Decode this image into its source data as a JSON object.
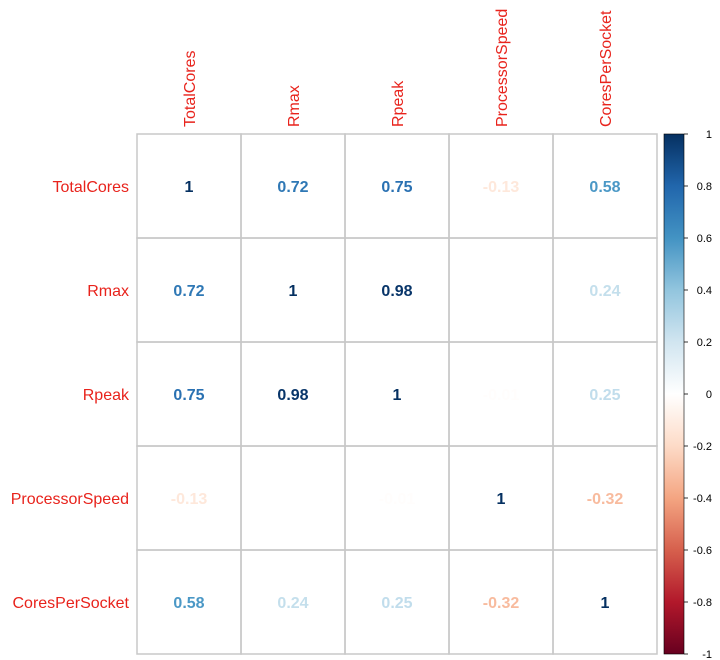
{
  "chart_data": {
    "type": "heatmap",
    "title": "",
    "variables": [
      "TotalCores",
      "Rmax",
      "Rpeak",
      "ProcessorSpeed",
      "CoresPerSocket"
    ],
    "matrix": [
      [
        1,
        0.72,
        0.75,
        -0.13,
        0.58
      ],
      [
        0.72,
        1,
        0.98,
        -0.01,
        0.24
      ],
      [
        0.75,
        0.98,
        1,
        -0.01,
        0.25
      ],
      [
        -0.13,
        -0.01,
        -0.01,
        1,
        -0.32
      ],
      [
        0.58,
        0.24,
        0.25,
        -0.32,
        1
      ]
    ],
    "value_labels": [
      [
        "1",
        "0.72",
        "0.75",
        "-0.13",
        "0.58"
      ],
      [
        "0.72",
        "1",
        "0.98",
        "",
        "0.24"
      ],
      [
        "0.75",
        "0.98",
        "1",
        "-0.01",
        "0.25"
      ],
      [
        "-0.13",
        "",
        "-0.01",
        "1",
        "-0.32"
      ],
      [
        "0.58",
        "0.24",
        "0.25",
        "-0.32",
        "1"
      ]
    ],
    "color_range": [
      -1,
      1
    ],
    "colorbar_ticks": [
      "1",
      "0.8",
      "0.6",
      "0.4",
      "0.2",
      "0",
      "-0.2",
      "-0.4",
      "-0.6",
      "-0.8",
      "-1"
    ],
    "colors": {
      "negative_end": "#67001f",
      "positive_end": "#053061",
      "label_color": "#e8231c",
      "grid": "#c8c8c8"
    }
  }
}
